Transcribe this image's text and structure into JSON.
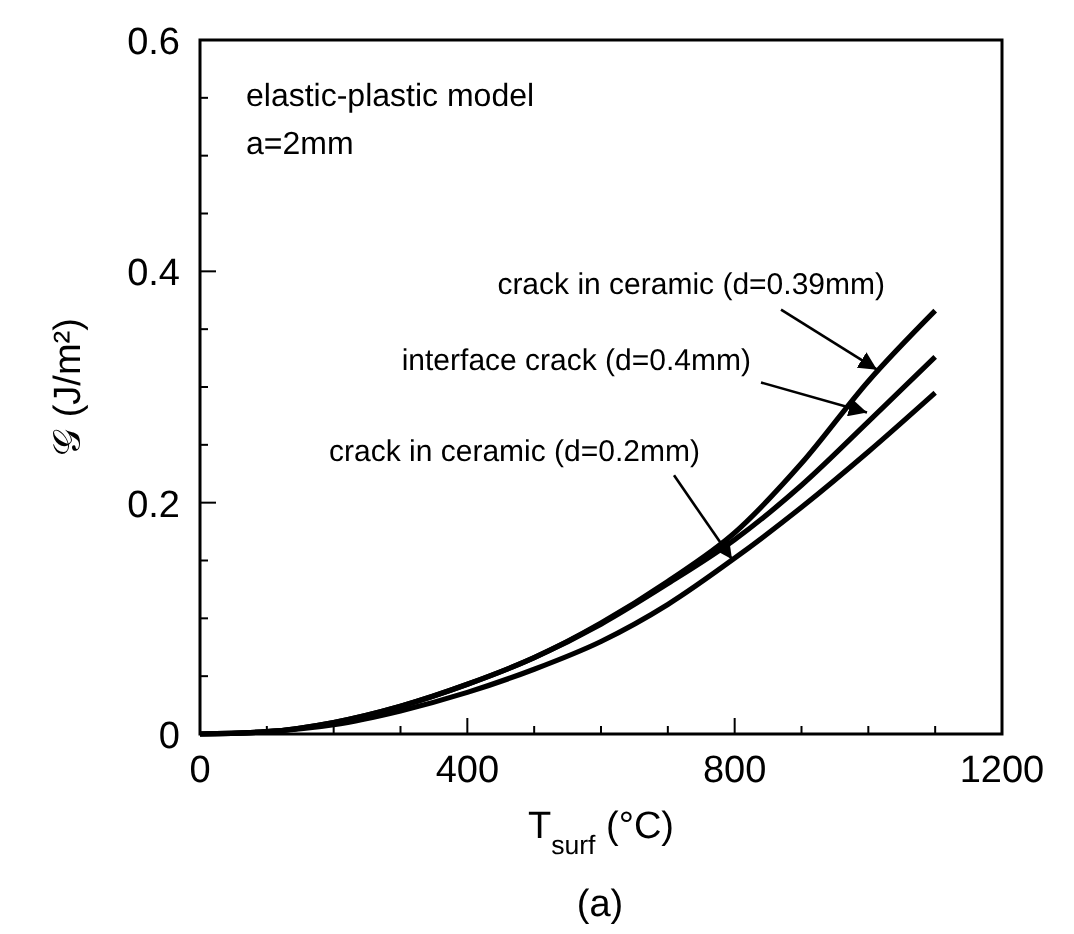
{
  "chart_data": {
    "type": "line",
    "xlabel": "T$_{surf}$  (°C)",
    "ylabel": "𝒢  (J/m²)",
    "x": [
      0,
      100,
      200,
      300,
      400,
      500,
      600,
      700,
      800,
      900,
      1000,
      1100
    ],
    "series": [
      {
        "color": "#000000",
        "values": [
          0,
          0.002,
          0.01,
          0.024,
          0.043,
          0.066,
          0.096,
          0.132,
          0.174,
          0.234,
          0.305,
          0.366
        ]
      },
      {
        "color": "#000000",
        "values": [
          0,
          0.002,
          0.01,
          0.024,
          0.043,
          0.066,
          0.095,
          0.13,
          0.168,
          0.215,
          0.27,
          0.326
        ]
      },
      {
        "color": "#000000",
        "values": [
          0,
          0.002,
          0.008,
          0.02,
          0.036,
          0.056,
          0.08,
          0.112,
          0.152,
          0.196,
          0.244,
          0.295
        ]
      }
    ],
    "xlim": [
      0,
      1200
    ],
    "ylim": [
      0,
      0.6
    ],
    "xticks": [
      0,
      {
        "value": 100,
        "label": null
      },
      {
        "value": 200,
        "label": null
      },
      {
        "value": 300,
        "label": null
      },
      400,
      {
        "value": 500,
        "label": null
      },
      {
        "value": 600,
        "label": null
      },
      {
        "value": 700,
        "label": null
      },
      800,
      {
        "value": 900,
        "label": null
      },
      {
        "value": 1000,
        "label": null
      },
      {
        "value": 1100,
        "label": null
      },
      1200
    ],
    "yticks": [
      0,
      {
        "value": 0.05,
        "label": null
      },
      {
        "value": 0.1,
        "label": null
      },
      {
        "value": 0.15,
        "label": null
      },
      0.2,
      {
        "value": 0.25,
        "label": null
      },
      {
        "value": 0.3,
        "label": null
      },
      {
        "value": 0.35,
        "label": null
      },
      0.4,
      {
        "value": 0.45,
        "label": null
      },
      {
        "value": 0.5,
        "label": null
      },
      {
        "value": 0.55,
        "label": null
      },
      0.6
    ],
    "grid": false,
    "marker": "none",
    "line_style": "solid",
    "annotations": [
      "elastic-plastic model",
      "a=2mm",
      {
        "text": "crack in ceramic (d=0.39mm)",
        "x": 1013,
        "y": 0.315
      },
      {
        "text": "interface crack (d=0.4mm)",
        "x": 998,
        "y": 0.278
      },
      {
        "text": "crack in ceramic (d=0.2mm)",
        "x": 796,
        "y": 0.151
      },
      "(a)"
    ]
  }
}
